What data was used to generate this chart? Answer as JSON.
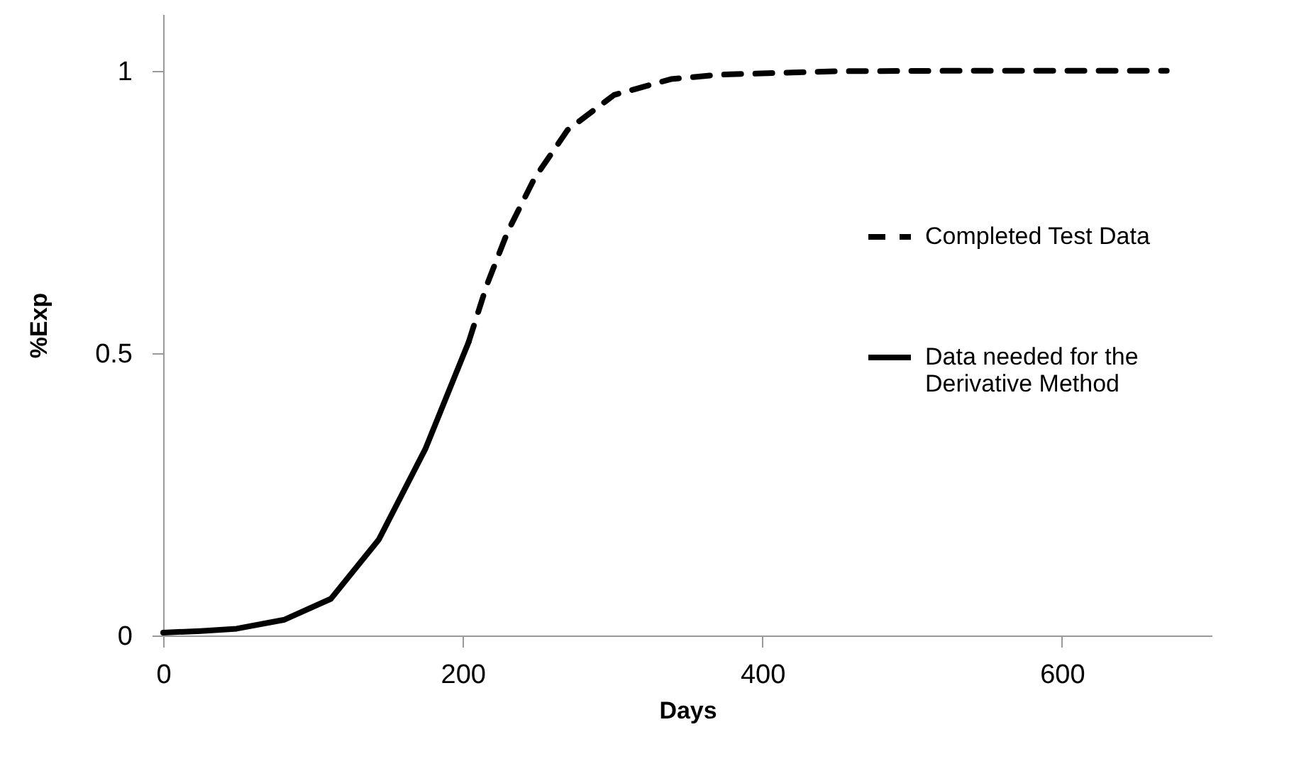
{
  "chart_data": {
    "type": "line",
    "xlabel": "Days",
    "ylabel": "%Exp",
    "xlim": [
      0,
      700
    ],
    "xticks": [
      0,
      200,
      400,
      600
    ],
    "ylim": [
      0,
      1.1
    ],
    "yticks": [
      0,
      0.5,
      1
    ],
    "grid": false,
    "legend": "right",
    "marker": "none",
    "series": [
      {
        "name": "Completed Test Data",
        "color": "#000000",
        "line_style": "dashed",
        "x": [
          204,
          216,
          230,
          248,
          270,
          301,
          339,
          372,
          450,
          550,
          670
        ],
        "values": [
          0.52,
          0.62,
          0.715,
          0.81,
          0.895,
          0.957,
          0.985,
          0.993,
          0.999,
          1,
          1
        ]
      },
      {
        "name": "Data needed for the Derivative Method",
        "color": "#000000",
        "line_style": "solid",
        "x": [
          0,
          25,
          49,
          81,
          112,
          144,
          175,
          204
        ],
        "values": [
          0.005,
          0.008,
          0.012,
          0.028,
          0.065,
          0.17,
          0.33,
          0.52
        ]
      }
    ]
  }
}
